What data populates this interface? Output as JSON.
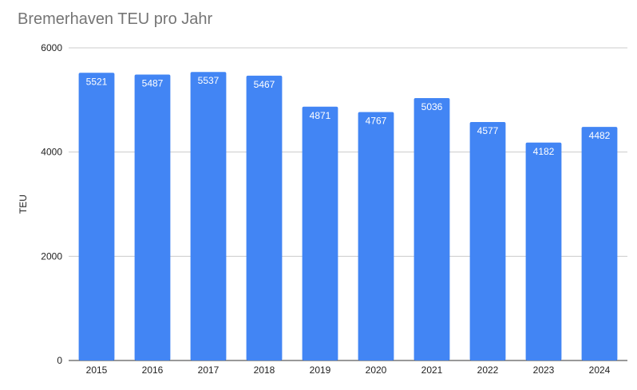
{
  "chart_data": {
    "type": "bar",
    "title": "Bremerhaven TEU pro Jahr",
    "xlabel": "",
    "ylabel": "TEU",
    "ylim": [
      0,
      6000
    ],
    "yticks": [
      0,
      2000,
      4000,
      6000
    ],
    "grid": true,
    "legend": "none",
    "categories": [
      "2015",
      "2016",
      "2017",
      "2018",
      "2019",
      "2020",
      "2021",
      "2022",
      "2023",
      "2024"
    ],
    "values": [
      5521,
      5487,
      5537,
      5467,
      4871,
      4767,
      5036,
      4577,
      4182,
      4482
    ],
    "bar_color": "#4285f4",
    "data_label_color": "#ffffff"
  }
}
